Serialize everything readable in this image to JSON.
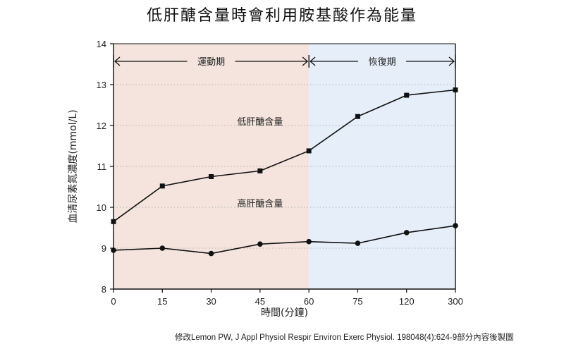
{
  "title": "低肝醣含量時會利用胺基酸作為能量",
  "source_note": "修改Lemon PW, J Appl Physiol Respir Environ Exerc Physiol. 198048(4):624-9部分內容後製圖",
  "colors": {
    "exercise_band": "#f4e4dd",
    "recovery_band": "#e6eff9",
    "line": "#111111",
    "grid": "#b0b0b0"
  },
  "chart_data": {
    "type": "line",
    "title": "低肝醣含量時會利用胺基酸作為能量",
    "xlabel": "時間(分鐘)",
    "ylabel": "血清尿素氮濃度(mmol/L)",
    "categories": [
      "0",
      "15",
      "30",
      "45",
      "60",
      "75",
      "120",
      "300"
    ],
    "ylim": [
      8,
      14
    ],
    "yticks": [
      8,
      9,
      10,
      11,
      12,
      13,
      14
    ],
    "grid": "horizontal dotted",
    "phases": [
      {
        "label": "運動期",
        "from_category": "0",
        "to_category": "60"
      },
      {
        "label": "恢復期",
        "from_category": "60",
        "to_category": "300"
      }
    ],
    "series": [
      {
        "name": "低肝醣含量",
        "marker": "square",
        "values": [
          9.65,
          10.52,
          10.75,
          10.89,
          11.38,
          12.22,
          12.74,
          12.87
        ]
      },
      {
        "name": "高肝醣含量",
        "marker": "circle",
        "values": [
          8.95,
          9.0,
          8.87,
          9.1,
          9.16,
          9.12,
          9.38,
          9.55
        ]
      }
    ]
  }
}
